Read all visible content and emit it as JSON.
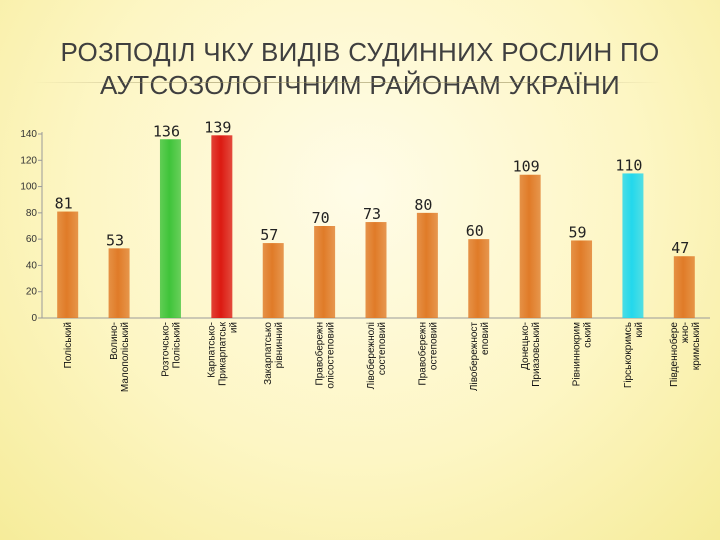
{
  "title_line1": "РОЗПОДІЛ ЧКУ ВИДІВ СУДИННИХ РОСЛИН ПО",
  "title_line2": "АУТСОЗОЛОГІЧНИМ РАЙОНАМ УКРАЇНИ",
  "chart_data": {
    "type": "bar",
    "title": "РОЗПОДІЛ ЧКУ ВИДІВ СУДИННИХ РОСЛИН ПО АУТСОЗОЛОГІЧНИМ РАЙОНАМ УКРАЇНИ",
    "xlabel": "",
    "ylabel": "",
    "ylim": [
      0,
      140
    ],
    "yticks": [
      0,
      20,
      40,
      60,
      80,
      100,
      120,
      140
    ],
    "grid": false,
    "legend": "none",
    "categories": [
      "Поліський",
      "Волино-Малополіський",
      "Розточсько-Поліський",
      "Карпатсько-Прикарпатський",
      "Закарпатсько рівнинний",
      "Правобережний лісостеповий",
      "Лівобережні лісостеповий",
      "Правобережний степовий",
      "Лівобережностеповий",
      "Донецько-Приазовський",
      "Рівниннокримський",
      "Гірськокримський",
      "Південнобережно-кримський"
    ],
    "category_lines": [
      [
        "Поліський"
      ],
      [
        "Волино-",
        "Малополіський"
      ],
      [
        "Розточсько-",
        "Поліський"
      ],
      [
        "Карпатсько-",
        "Прикарпатськ",
        "ий"
      ],
      [
        "Закарпатсько",
        "рівнинний"
      ],
      [
        "Правобережн",
        "олісостеповий"
      ],
      [
        "Лівобережнолі",
        "состеповий"
      ],
      [
        "Правобережн",
        "остеповий"
      ],
      [
        "Лівобережност",
        "еповий"
      ],
      [
        "Донецько-",
        "Приазовський"
      ],
      [
        "Рівниннокрим",
        "ський"
      ],
      [
        "Гірськокримсь",
        "кий"
      ],
      [
        "Південнобере",
        "жно-",
        "кримський"
      ]
    ],
    "values": [
      81,
      53,
      136,
      139,
      57,
      70,
      73,
      80,
      60,
      109,
      59,
      110,
      47
    ],
    "colors": [
      "#e07b28",
      "#e07b28",
      "#3fc43a",
      "#dc1a12",
      "#e07b28",
      "#e07b28",
      "#e07b28",
      "#e07b28",
      "#e07b28",
      "#e07b28",
      "#e07b28",
      "#23d8ec",
      "#e07b28"
    ]
  }
}
